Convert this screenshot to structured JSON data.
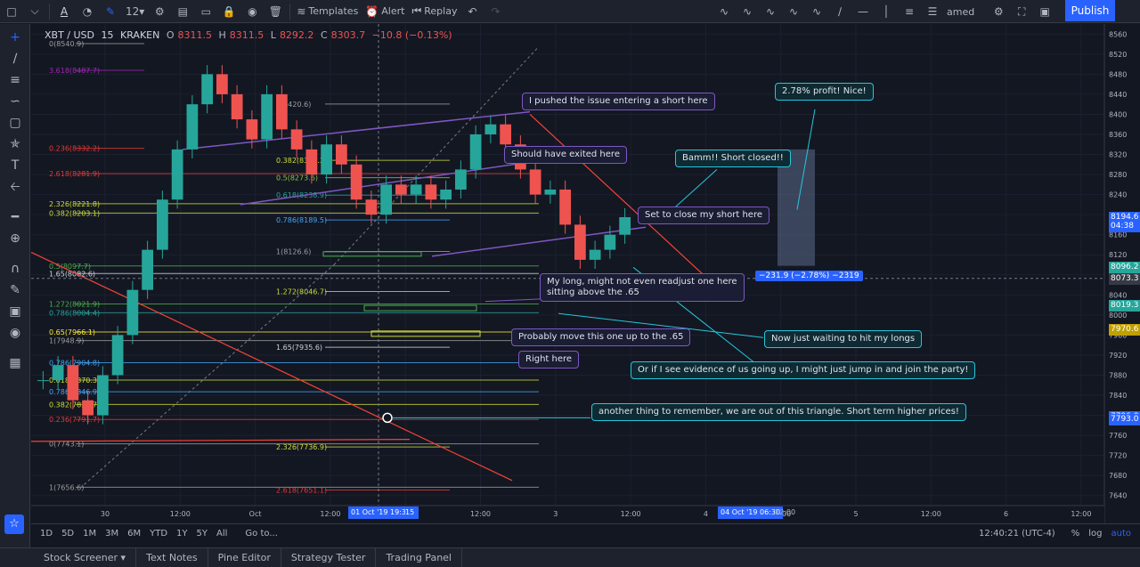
{
  "toolbar": {
    "interval": "12",
    "templates_label": "Templates",
    "alert_label": "Alert",
    "replay_label": "Replay",
    "layout_name": "amed",
    "publish_label": "Publish"
  },
  "symbol": {
    "name": "XBT / USD",
    "interval": "15",
    "exchange": "KRAKEN",
    "o_label": "O",
    "o": "8311.5",
    "h_label": "H",
    "h": "8311.5",
    "l_label": "L",
    "l": "8292.2",
    "c_label": "C",
    "c": "8303.7",
    "change": "−10.8 (−0.13%)"
  },
  "notes": {
    "n1": "I pushed the issue entering a short here",
    "n2": "Should have exited here",
    "n3": "Bamm!! Short closed!!",
    "n4": "2.78% profit! Nice!",
    "n5": "Set to close my short here",
    "n6a": "My long, might not even readjust one here",
    "n6b": "sitting above the .65",
    "n7": "Probably move this one up to the .65",
    "n8": "Right here",
    "n9": "Now just waiting to hit my longs",
    "n10": "Or if I see evidence of us going up, I might just jump in and join the party!",
    "n11": "another thing to remember, we are out of this triangle. Short term higher prices!"
  },
  "measure_label": "−231.9 (−2.78%) −2319",
  "price_tags": [
    {
      "value": "8194.6",
      "color": "#2962ff"
    },
    {
      "value": "04:38",
      "color": "#2962ff"
    },
    {
      "value": "8096.2",
      "color": "#26a69a"
    },
    {
      "value": "8073.3",
      "color": "#363a45"
    },
    {
      "value": "8019.3",
      "color": "#26a69a"
    },
    {
      "value": "7970.6",
      "color": "#c0a000"
    },
    {
      "value": "7796.8",
      "color": "#2962ff"
    },
    {
      "value": "7793.0",
      "color": "#2962ff"
    }
  ],
  "time_highlights": {
    "crosshair": "01 Oct '19   19:30",
    "crosshair_tail": "15",
    "measure_end": "04 Oct '19   06:30",
    "measure_tail": "12:00"
  },
  "ranges": [
    "1D",
    "5D",
    "1M",
    "3M",
    "6M",
    "YTD",
    "1Y",
    "5Y",
    "All"
  ],
  "goto_label": "Go to...",
  "clock": "12:40:21 (UTC-4)",
  "scale_opts": [
    "%",
    "log",
    "auto"
  ],
  "bottom_tabs": [
    "Stock Screener",
    "Text Notes",
    "Pine Editor",
    "Strategy Tester",
    "Trading Panel"
  ],
  "chart_data": {
    "type": "candlestick",
    "title": "XBT / USD · 15 · KRAKEN",
    "ylim": [
      7620,
      8580
    ],
    "y_ticks": [
      8560,
      8520,
      8480,
      8440,
      8400,
      8360,
      8320,
      8280,
      8240,
      8200,
      8160,
      8120,
      8080,
      8040,
      8000,
      7960,
      7920,
      7880,
      7840,
      7800,
      7760,
      7720,
      7680,
      7640
    ],
    "x_ticks": [
      "30",
      "12:00",
      "Oct",
      "12:00",
      "2",
      "12:00",
      "3",
      "12:00",
      "4",
      "12:00",
      "5",
      "12:00",
      "6",
      "12:00"
    ],
    "close_series": [
      7870,
      7900,
      7830,
      7800,
      7880,
      7960,
      8050,
      8130,
      8230,
      8330,
      8420,
      8480,
      8440,
      8390,
      8350,
      8440,
      8370,
      8330,
      8280,
      8340,
      8300,
      8230,
      8200,
      8260,
      8240,
      8260,
      8230,
      8250,
      8290,
      8360,
      8380,
      8340,
      8290,
      8240,
      8250,
      8180,
      8110,
      8130,
      8160,
      8195
    ],
    "fib_levels_left": [
      {
        "label": "0(8540.9)",
        "value": 8540.9
      },
      {
        "label": "3.618(8487.7)",
        "value": 8487.7
      },
      {
        "label": "0.236(8332.2)",
        "value": 8332.2
      },
      {
        "label": "2.618(8281.9)",
        "value": 8281.9
      },
      {
        "label": "2.326(8221.8)",
        "value": 8221.8
      },
      {
        "label": "0.382(8203.1)",
        "value": 8203.1
      },
      {
        "label": "0.5(8097.7)",
        "value": 8097.7
      },
      {
        "label": "1.65(8082.6)",
        "value": 8082.6
      },
      {
        "label": "1.272(8021.9)",
        "value": 8021.9
      },
      {
        "label": "0.786(8004.4)",
        "value": 8004.4
      },
      {
        "label": "0.65(7966.1)",
        "value": 7966.1
      },
      {
        "label": "1(7948.9)",
        "value": 7948.9
      },
      {
        "label": "0.786(7904.8)",
        "value": 7904.8
      },
      {
        "label": "0.618(7870.3)",
        "value": 7870.3
      },
      {
        "label": "0.786(7846.9)",
        "value": 7846.9
      },
      {
        "label": "0.382(7821.7)",
        "value": 7821.7
      },
      {
        "label": "0.236(7791.7)",
        "value": 7791.7
      },
      {
        "label": "0(7743.1)",
        "value": 7743.1
      },
      {
        "label": "1(7656.6)",
        "value": 7656.6
      }
    ],
    "fib_levels_mid": [
      {
        "label": "0(8420.6)",
        "value": 8420.6
      },
      {
        "label": "0.382(8308.3)",
        "value": 8308.3
      },
      {
        "label": "0.5(8273.6)",
        "value": 8273.6
      },
      {
        "label": "0.618(8238.9)",
        "value": 8238.9
      },
      {
        "label": "0.786(8189.5)",
        "value": 8189.5
      },
      {
        "label": "1(8126.6)",
        "value": 8126.6
      },
      {
        "label": "1.272(8046.7)",
        "value": 8046.7
      },
      {
        "label": "1.65(7935.6)",
        "value": 7935.6
      },
      {
        "label": "2.326(7736.9)",
        "value": 7736.9
      },
      {
        "label": "2.618(7651.1)",
        "value": 7651.1
      }
    ]
  }
}
